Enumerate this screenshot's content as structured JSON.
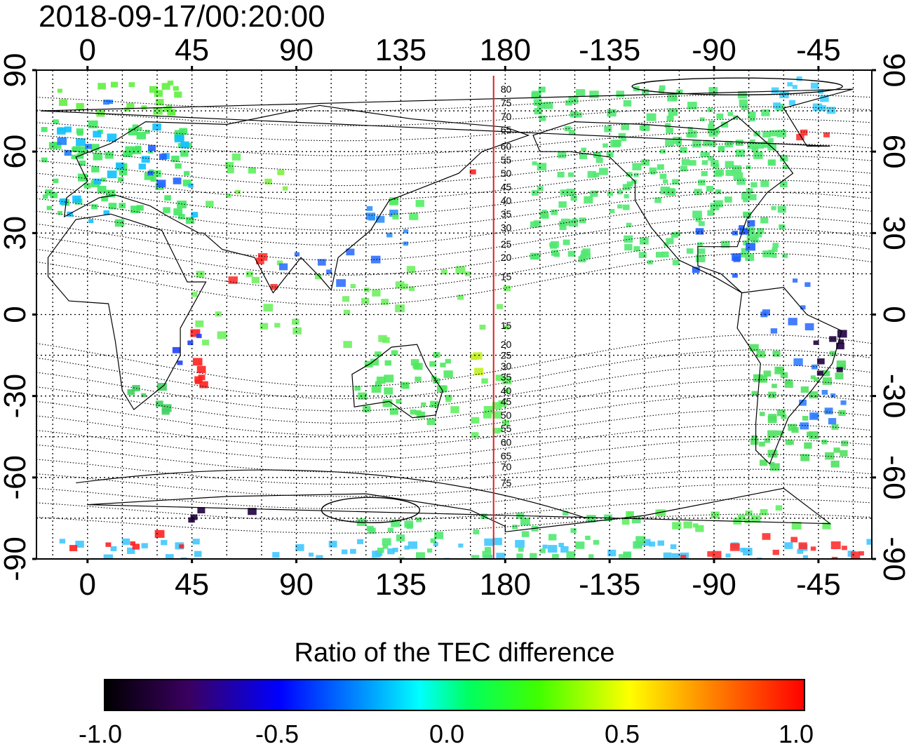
{
  "timestamp": "2018-09-17/00:20:00",
  "x_axis": {
    "top_ticks": [
      "0",
      "45",
      "90",
      "135",
      "180",
      "-135",
      "-90",
      "-45"
    ],
    "bottom_ticks": [
      "0",
      "45",
      "90",
      "135",
      "180",
      "-135",
      "-90",
      "-45"
    ],
    "tick_longitudes": [
      0,
      45,
      90,
      135,
      180,
      225,
      270,
      315
    ]
  },
  "y_axis": {
    "left_ticks": [
      "90",
      "60",
      "30",
      "0",
      "-30",
      "-60",
      "-90"
    ],
    "right_ticks": [
      "90",
      "60",
      "30",
      "0",
      "-30",
      "-60",
      "-90"
    ],
    "tick_latitudes": [
      90,
      60,
      30,
      0,
      -30,
      -60,
      -90
    ]
  },
  "map": {
    "lon_range": [
      -22,
      338
    ],
    "lat_range": [
      -90,
      90
    ],
    "terminator_longitude": 175,
    "contour_labels": [
      "80",
      "75",
      "70",
      "65",
      "60",
      "55",
      "50",
      "45",
      "40",
      "35",
      "30",
      "25",
      "20",
      "15",
      "15",
      "20",
      "25",
      "30",
      "35",
      "40",
      "45",
      "50",
      "55",
      "60",
      "65",
      "70",
      "75"
    ],
    "colors": {
      "terminator": "#e02020",
      "grid": "#000000",
      "coast": "#000000"
    }
  },
  "colorbar": {
    "title": "Ratio of the TEC difference",
    "tick_labels": [
      "-1.0",
      "-0.5",
      "0.0",
      "0.5",
      "1.0"
    ],
    "range": [
      -1.0,
      1.0
    ],
    "colors": [
      "#000000",
      "#3a0060",
      "#0000ff",
      "#00ffff",
      "#00ff40",
      "#7fff00",
      "#ffff00",
      "#ff8000",
      "#ff0000"
    ]
  }
}
